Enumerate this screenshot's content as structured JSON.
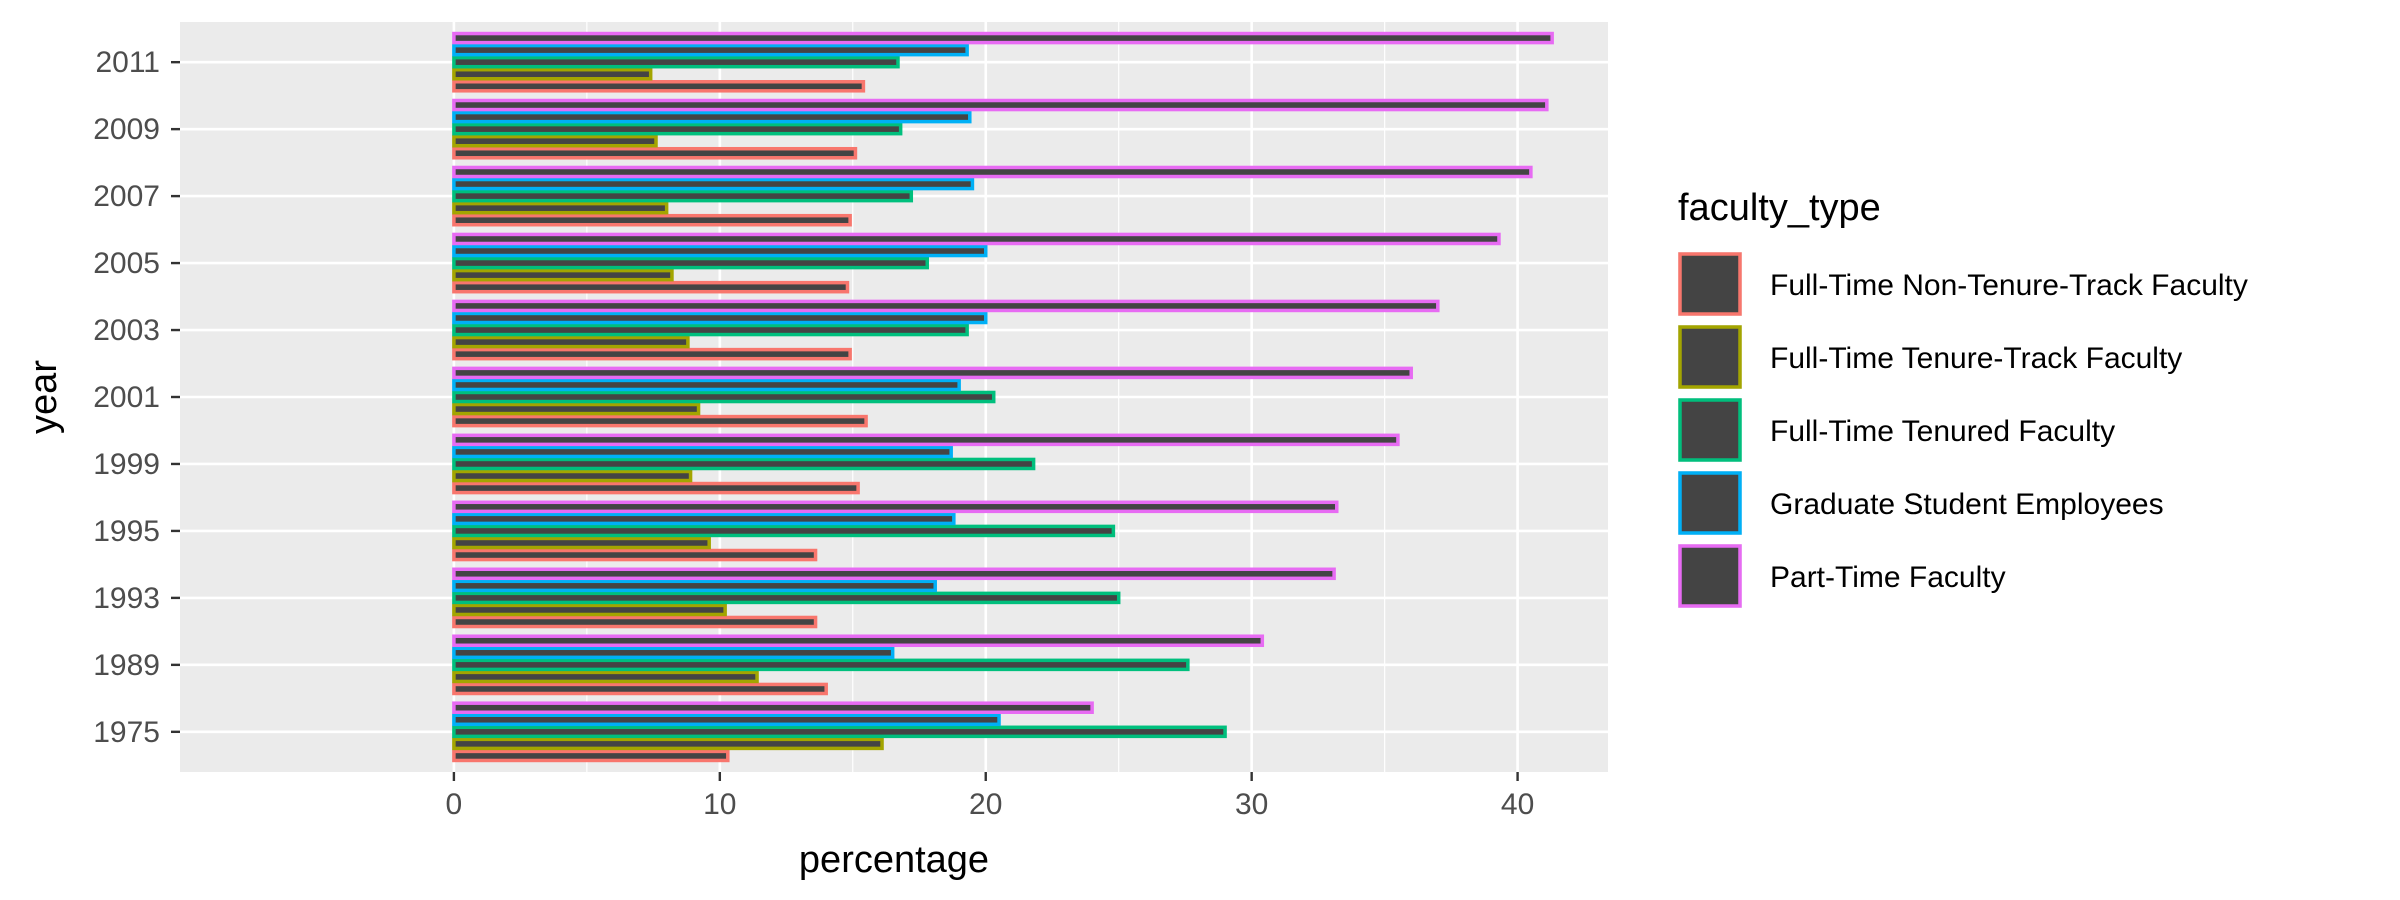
{
  "chart_data": {
    "type": "bar",
    "orientation": "horizontal",
    "xlabel": "percentage",
    "ylabel": "year",
    "xlim": [
      -10.3,
      43.4
    ],
    "x_ticks": [
      0,
      10,
      20,
      30,
      40
    ],
    "x_tick_labels": [
      "0",
      "10",
      "20",
      "30",
      "40"
    ],
    "grid": true,
    "legend_position": "right",
    "categories": [
      "1975",
      "1989",
      "1993",
      "1995",
      "1999",
      "2001",
      "2003",
      "2005",
      "2007",
      "2009",
      "2011"
    ],
    "legend_title": "faculty_type",
    "bar_fill": "#444444",
    "panel_background": "#ebebeb",
    "series": [
      {
        "name": "Full-Time Non-Tenure-Track Faculty",
        "color": "#f8766d",
        "values": [
          10.3,
          14.0,
          13.6,
          13.6,
          15.2,
          15.5,
          14.9,
          14.8,
          14.9,
          15.1,
          15.4
        ]
      },
      {
        "name": "Full-Time Tenure-Track Faculty",
        "color": "#a3a500",
        "values": [
          16.1,
          11.4,
          10.2,
          9.6,
          8.9,
          9.2,
          8.8,
          8.2,
          8.0,
          7.6,
          7.4
        ]
      },
      {
        "name": "Full-Time Tenured Faculty",
        "color": "#00bf7d",
        "values": [
          29.0,
          27.6,
          25.0,
          24.8,
          21.8,
          20.3,
          19.3,
          17.8,
          17.2,
          16.8,
          16.7
        ]
      },
      {
        "name": "Graduate Student Employees",
        "color": "#00b0f6",
        "values": [
          20.5,
          16.5,
          18.1,
          18.8,
          18.7,
          19.0,
          20.0,
          20.0,
          19.5,
          19.4,
          19.3
        ]
      },
      {
        "name": "Part-Time Faculty",
        "color": "#e76bf3",
        "values": [
          24.0,
          30.4,
          33.1,
          33.2,
          35.5,
          36.0,
          37.0,
          39.3,
          40.5,
          41.1,
          41.3
        ]
      }
    ]
  }
}
